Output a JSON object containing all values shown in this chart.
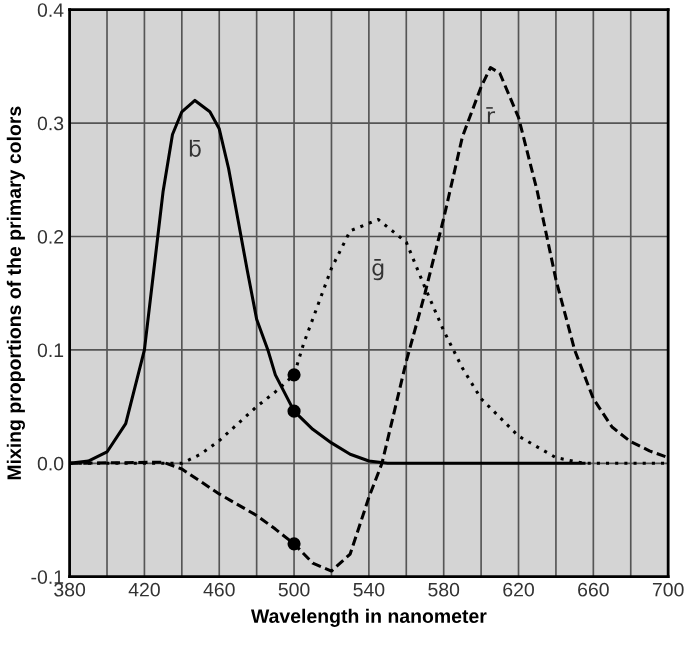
{
  "chart_data": {
    "type": "line",
    "xlabel": "Wavelength in nanometer",
    "ylabel": "Mixing proportions of the primary colors",
    "xlim": [
      380,
      700
    ],
    "ylim": [
      -0.1,
      0.4
    ],
    "xticks": [
      380,
      {
        "value": 400,
        "label": null
      },
      420,
      {
        "value": 440,
        "label": null
      },
      460,
      {
        "value": 480,
        "label": null
      },
      500,
      {
        "value": 520,
        "label": null
      },
      540,
      {
        "value": 560,
        "label": null
      },
      580,
      {
        "value": 600,
        "label": null
      },
      620,
      {
        "value": 640,
        "label": null
      },
      660,
      {
        "value": 680,
        "label": null
      },
      700
    ],
    "yticks": [
      {
        "value": -0.1,
        "label": "-0.1"
      },
      {
        "value": 0,
        "label": "0.0"
      },
      0.1,
      0.2,
      0.3,
      0.4
    ],
    "grid": true,
    "series": [
      {
        "name": "b̄",
        "color": "#000000",
        "line_style": "solid",
        "x": [
          380,
          390,
          400,
          410,
          420,
          425,
          430,
          435,
          440,
          447,
          455,
          460,
          465,
          470,
          475,
          480,
          486,
          490,
          500,
          510,
          520,
          530,
          540,
          550,
          600,
          655
        ],
        "values": [
          0,
          0.002,
          0.01,
          0.035,
          0.1,
          0.17,
          0.24,
          0.29,
          0.31,
          0.32,
          0.31,
          0.295,
          0.26,
          0.215,
          0.17,
          0.127,
          0.1,
          0.078,
          0.046,
          0.03,
          0.018,
          0.008,
          0.002,
          0,
          0,
          0
        ]
      },
      {
        "name": "ḡ",
        "color": "#000000",
        "line_style": "dotted",
        "x": [
          380,
          440,
          450,
          460,
          470,
          480,
          490,
          500,
          505,
          520,
          530,
          545,
          560,
          570,
          580,
          590,
          600,
          620,
          640,
          655,
          700
        ],
        "values": [
          0,
          0,
          0.008,
          0.02,
          0.035,
          0.05,
          0.063,
          0.078,
          0.105,
          0.172,
          0.205,
          0.215,
          0.195,
          0.155,
          0.117,
          0.084,
          0.057,
          0.024,
          0.005,
          0,
          0
        ]
      },
      {
        "name": "r̄",
        "color": "#000000",
        "line_style": "dashed",
        "x": [
          380,
          430,
          440,
          460,
          480,
          490,
          500,
          510,
          520,
          530,
          540,
          547,
          560,
          570,
          580,
          590,
          600,
          605,
          610,
          620,
          630,
          640,
          650,
          660,
          670,
          680,
          690,
          700
        ],
        "values": [
          0,
          0.001,
          -0.005,
          -0.027,
          -0.046,
          -0.058,
          -0.071,
          -0.088,
          -0.095,
          -0.08,
          -0.03,
          0,
          0.09,
          0.15,
          0.216,
          0.288,
          0.332,
          0.349,
          0.344,
          0.305,
          0.24,
          0.162,
          0.1,
          0.057,
          0.032,
          0.019,
          0.011,
          0.005
        ]
      },
      {
        "type": "scatter",
        "color": "#000000",
        "marker": "circle",
        "x": [
          500,
          500,
          500
        ],
        "values": [
          0.078,
          0.046,
          -0.071
        ]
      }
    ]
  }
}
